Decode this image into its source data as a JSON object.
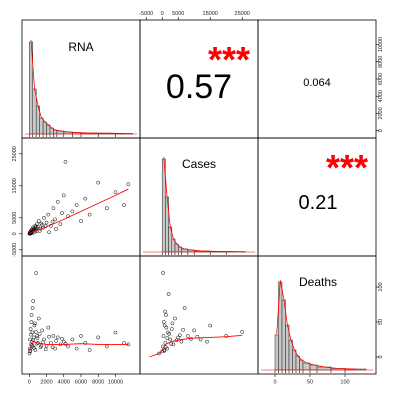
{
  "chart_data": {
    "type": "scatter",
    "variables": [
      "RNA",
      "Cases",
      "Deaths"
    ],
    "correlations": [
      {
        "row": 0,
        "col": 1,
        "value": "0.57",
        "significance": "***"
      },
      {
        "row": 0,
        "col": 2,
        "value": "0.064",
        "significance": ""
      },
      {
        "row": 1,
        "col": 2,
        "value": "0.21",
        "significance": "***"
      }
    ],
    "axis_ranges": {
      "RNA": [
        -500,
        12500
      ],
      "Cases": [
        -6000,
        29000
      ],
      "Deaths": [
        -20,
        140
      ]
    },
    "tick_labels": {
      "x_bottom_rna": [
        "0",
        "2000",
        "4000",
        "6000",
        "8000",
        "10000"
      ],
      "x_bottom_deaths": [
        "0",
        "50",
        "100"
      ],
      "x_top_cases": [
        "-5000",
        "0",
        "5000",
        "15000",
        "25000"
      ],
      "y_left_cases": [
        "25000",
        "15000",
        "5000",
        "0",
        "-5000"
      ],
      "y_right_rna": [
        "10000",
        "8000",
        "6000",
        "4000",
        "2000",
        "0"
      ],
      "y_right_deaths": [
        "100",
        "50",
        "0"
      ]
    },
    "histograms": {
      "RNA": {
        "bins": [
          0,
          400,
          800,
          1200,
          1600,
          2000,
          2400,
          2800,
          3200,
          4000,
          5000,
          6000,
          8000,
          10000,
          12000
        ],
        "density": [
          0.92,
          0.45,
          0.28,
          0.16,
          0.12,
          0.09,
          0.06,
          0.04,
          0.03,
          0.02,
          0.015,
          0.01,
          0.008,
          0.005
        ]
      },
      "Cases": {
        "bins": [
          0,
          1000,
          2000,
          3000,
          4000,
          5000,
          6000,
          8000,
          10000,
          15000,
          20000,
          26000
        ],
        "density": [
          0.93,
          0.55,
          0.25,
          0.13,
          0.08,
          0.05,
          0.03,
          0.02,
          0.01,
          0.006,
          0.004
        ]
      },
      "Deaths": {
        "bins": [
          0,
          5,
          10,
          15,
          20,
          25,
          30,
          35,
          40,
          50,
          60,
          80,
          100,
          130
        ],
        "density": [
          0.35,
          0.88,
          0.7,
          0.45,
          0.3,
          0.2,
          0.14,
          0.1,
          0.07,
          0.05,
          0.03,
          0.015,
          0.01
        ]
      }
    },
    "scatter": {
      "rna_cases": {
        "x": [
          20,
          50,
          80,
          100,
          150,
          200,
          260,
          300,
          350,
          400,
          450,
          500,
          600,
          700,
          800,
          900,
          1000,
          1100,
          1300,
          1500,
          1700,
          2000,
          2200,
          2500,
          2800,
          3000,
          3300,
          3600,
          4000,
          4500,
          5000,
          5500,
          6000,
          6500,
          7000,
          8000,
          9000,
          10000,
          11000,
          11500,
          120,
          180,
          240,
          320,
          380,
          460,
          550,
          650,
          750,
          850,
          950,
          1200,
          1400,
          1600,
          1900,
          2300,
          2700,
          3100,
          3800,
          4200
        ],
        "y": [
          0,
          200,
          500,
          100,
          800,
          300,
          1200,
          600,
          1500,
          900,
          2000,
          1100,
          1800,
          2500,
          1300,
          3000,
          2200,
          4000,
          1600,
          2800,
          5000,
          3500,
          6000,
          2500,
          8000,
          4500,
          10000,
          3000,
          12000,
          5500,
          7000,
          9000,
          4000,
          11000,
          6000,
          16000,
          8000,
          13000,
          9000,
          15500,
          50,
          150,
          400,
          700,
          250,
          1000,
          1400,
          600,
          2100,
          800,
          1700,
          900,
          3200,
          1900,
          2400,
          500,
          3800,
          1500,
          6500,
          22500
        ],
        "trend_x": [
          0,
          1000,
          2000,
          4000,
          6000,
          8000,
          10000,
          11500
        ],
        "trend_y": [
          200,
          1200,
          2200,
          4500,
          7000,
          9500,
          12000,
          14000
        ]
      },
      "rna_deaths": {
        "x": [
          20,
          50,
          80,
          100,
          150,
          200,
          260,
          300,
          350,
          400,
          450,
          500,
          600,
          700,
          800,
          900,
          1000,
          1100,
          1300,
          1500,
          1700,
          2000,
          2200,
          2500,
          2800,
          3000,
          3300,
          3600,
          4000,
          4500,
          5000,
          5500,
          6000,
          6500,
          7000,
          8000,
          9000,
          10000,
          11000,
          11500,
          120,
          180,
          240,
          320,
          380,
          460,
          550,
          650,
          750,
          850,
          950,
          1200,
          1400,
          1600,
          1900,
          2300,
          2700,
          3100,
          3800,
          4200
        ],
        "y": [
          5,
          12,
          25,
          8,
          40,
          18,
          60,
          22,
          35,
          15,
          80,
          28,
          45,
          10,
          120,
          30,
          20,
          55,
          14,
          38,
          25,
          16,
          42,
          20,
          30,
          12,
          28,
          18,
          22,
          15,
          25,
          12,
          30,
          20,
          10,
          28,
          15,
          35,
          20,
          18,
          9,
          32,
          50,
          17,
          70,
          24,
          13,
          48,
          36,
          19,
          27,
          33,
          16,
          21,
          11,
          29,
          14,
          23,
          26,
          19
        ],
        "trend_x": [
          0,
          500,
          1000,
          2000,
          4000,
          6000,
          8000,
          10000,
          11500
        ],
        "trend_y": [
          10,
          22,
          20,
          18,
          18,
          19,
          18,
          18,
          18
        ]
      },
      "cases_deaths": {
        "x": [
          -1000,
          0,
          200,
          400,
          600,
          800,
          1000,
          1200,
          1500,
          1800,
          2000,
          2500,
          3000,
          3500,
          4000,
          5000,
          6000,
          7000,
          8000,
          10000,
          12000,
          15000,
          20000,
          25000,
          300,
          500,
          700,
          900,
          1100,
          1300,
          1600,
          2200,
          2800,
          3200,
          4500,
          5500,
          6500,
          9000,
          11000,
          14000
        ],
        "y": [
          5,
          8,
          15,
          30,
          10,
          45,
          20,
          60,
          12,
          35,
          90,
          25,
          40,
          18,
          55,
          28,
          22,
          70,
          30,
          38,
          25,
          45,
          30,
          36,
          120,
          50,
          9,
          65,
          14,
          42,
          27,
          33,
          19,
          48,
          24,
          31,
          39,
          26,
          29,
          22
        ],
        "trend_x": [
          -4000,
          -1000,
          0,
          1000,
          3000,
          6000,
          10000,
          15000,
          20000,
          25000
        ],
        "trend_y": [
          0,
          5,
          10,
          18,
          22,
          25,
          27,
          28,
          29,
          31
        ]
      }
    }
  }
}
